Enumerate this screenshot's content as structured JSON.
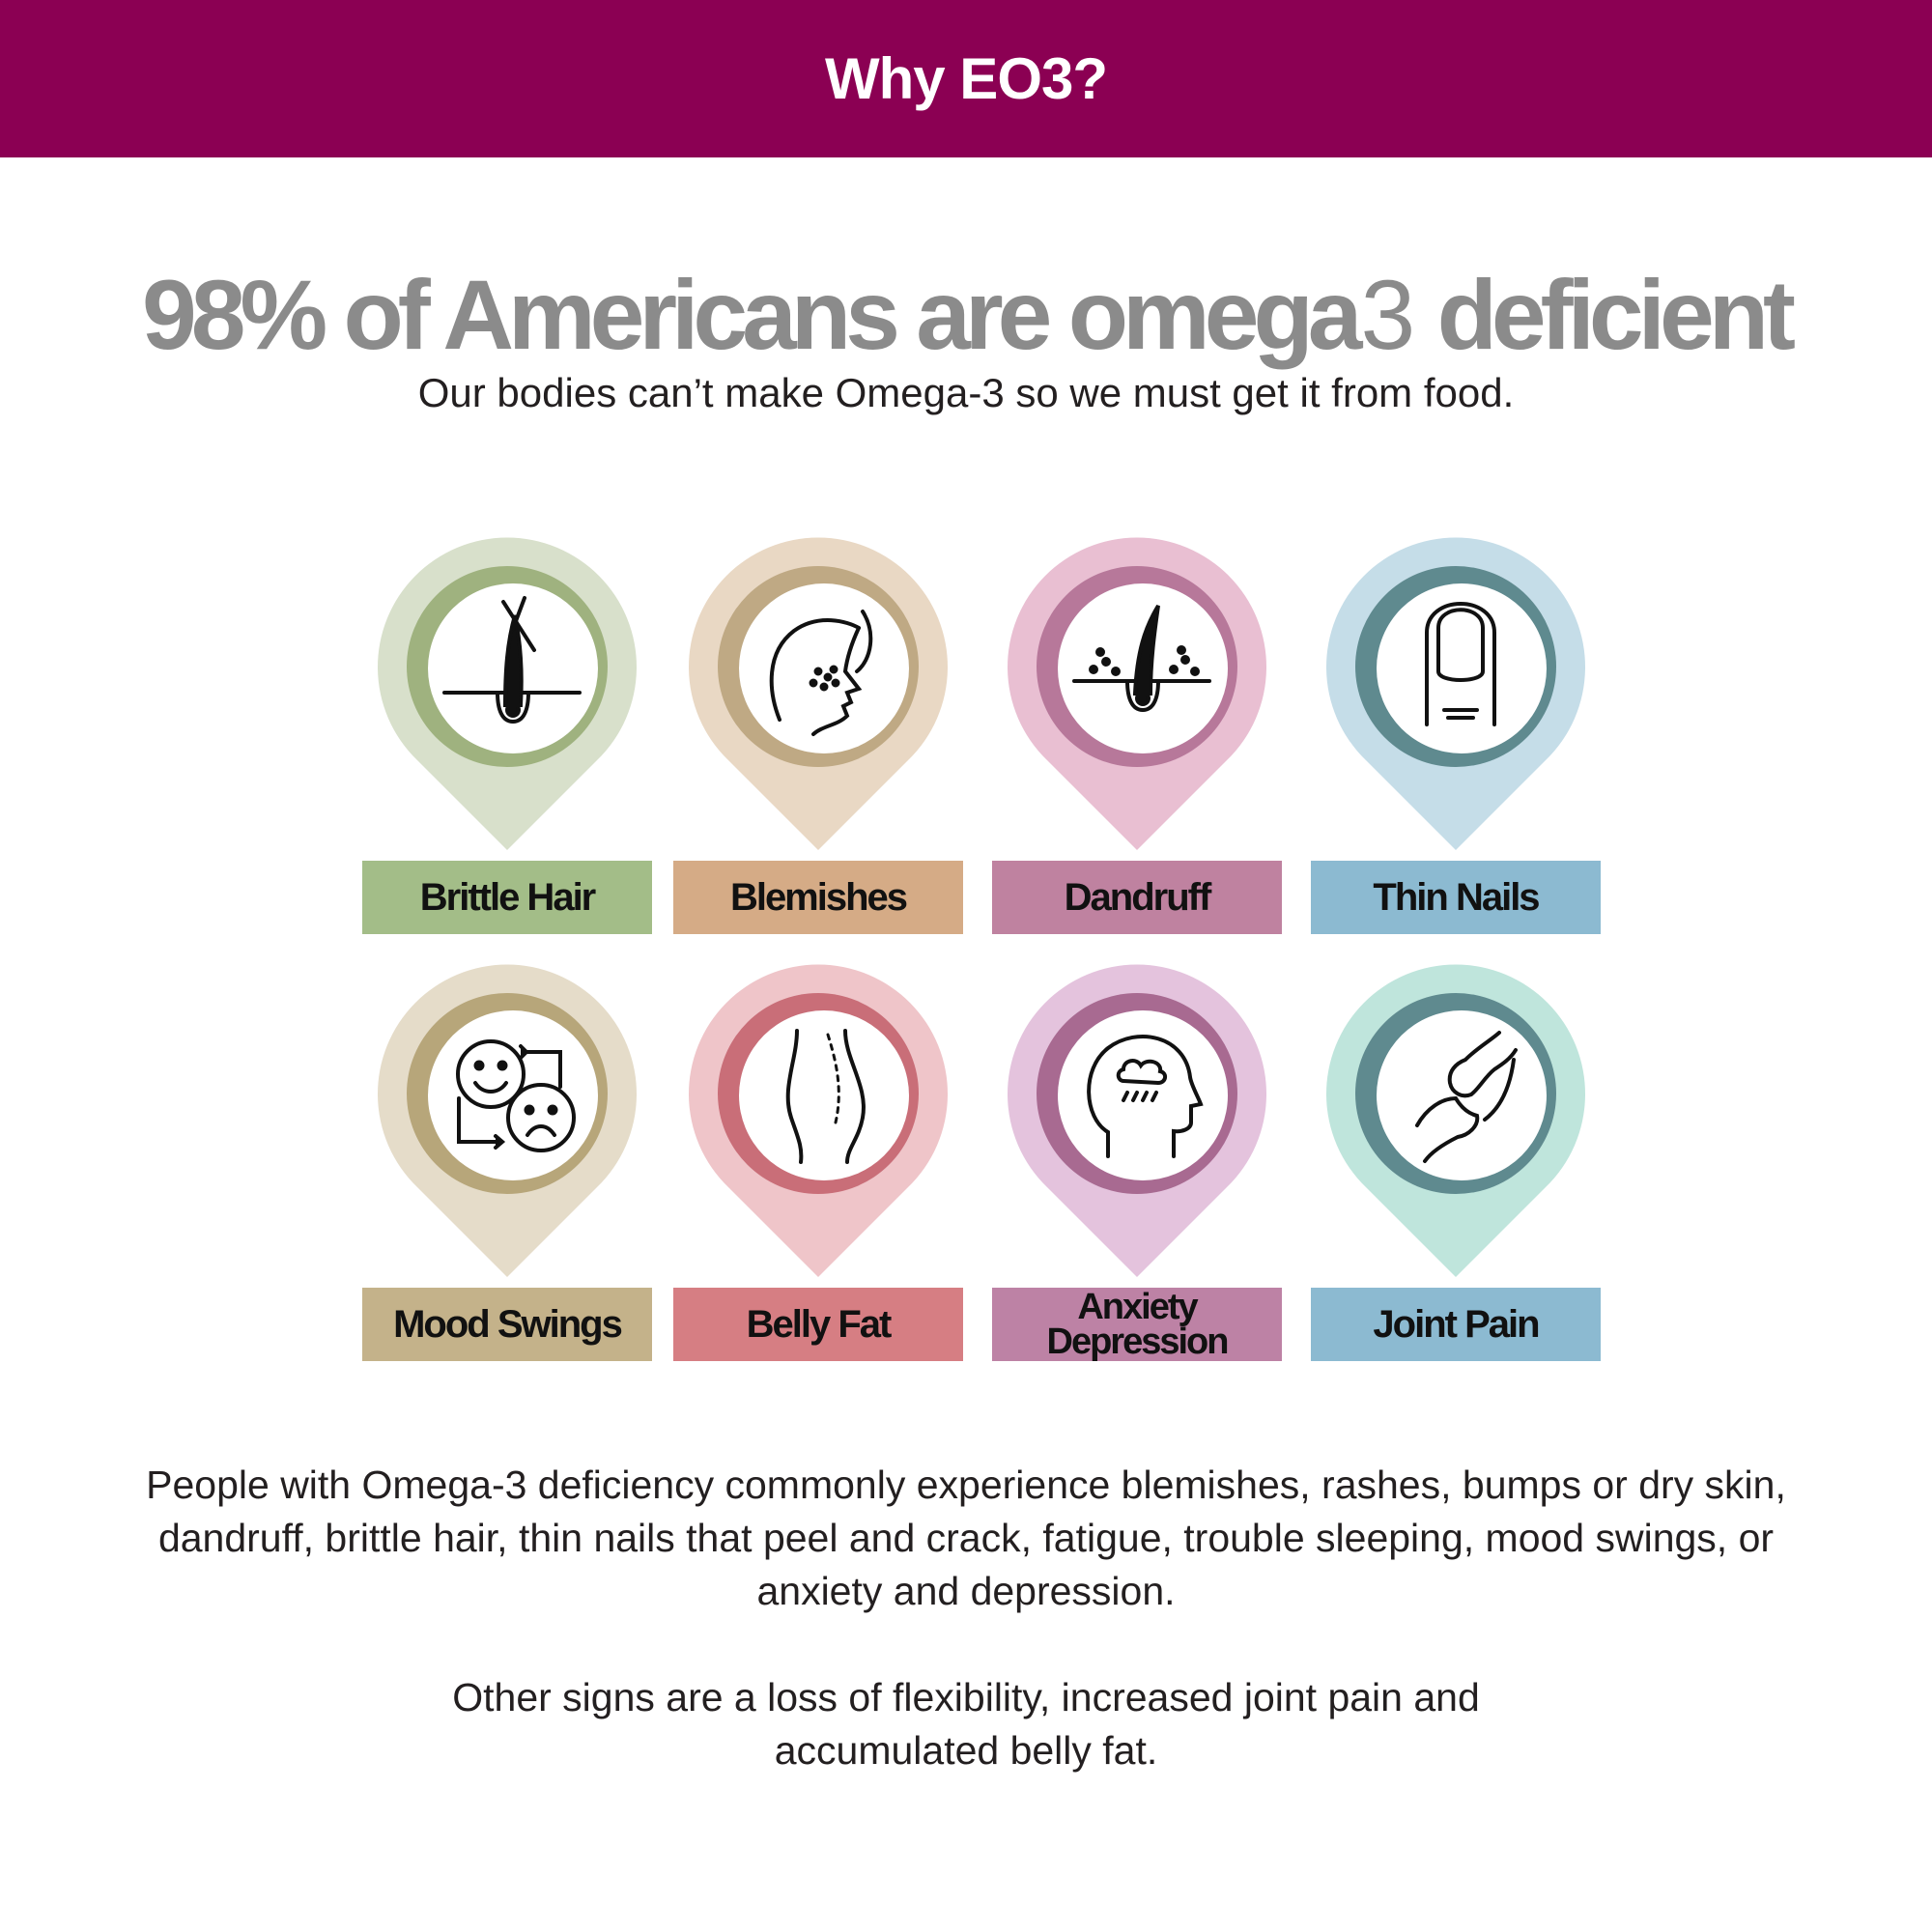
{
  "banner": {
    "title": "Why EO3?"
  },
  "headline": {
    "main": "98% of Americans are omega",
    "three": "3",
    "rest": " deficient"
  },
  "subhead": "Our bodies can’t make Omega-3 so we must get it from food.",
  "symptoms": [
    {
      "label": "Brittle Hair",
      "icon": "brittle-hair-icon",
      "pin_color": "#d8e0cb",
      "ring_color": "#9fb27f",
      "label_color": "#a3bd88"
    },
    {
      "label": "Blemishes",
      "icon": "face-blemish-icon",
      "pin_color": "#e9d8c4",
      "ring_color": "#bfa984",
      "label_color": "#d5ab86"
    },
    {
      "label": "Dandruff",
      "icon": "dandruff-icon",
      "pin_color": "#e9bfd2",
      "ring_color": "#b7789a",
      "label_color": "#bf82a0"
    },
    {
      "label": "Thin Nails",
      "icon": "nail-icon",
      "pin_color": "#c5dde8",
      "ring_color": "#5f8a8f",
      "label_color": "#8cbad1"
    },
    {
      "label": "Mood Swings",
      "icon": "mood-swings-icon",
      "pin_color": "#e5dcc9",
      "ring_color": "#b7a67a",
      "label_color": "#c4b28a"
    },
    {
      "label": "Belly Fat",
      "icon": "belly-fat-icon",
      "pin_color": "#efc5c9",
      "ring_color": "#c96e78",
      "label_color": "#d67e83"
    },
    {
      "label_line1": "Anxiety",
      "label_line2": "Depression",
      "icon": "anxious-head-icon",
      "pin_color": "#e4c3dd",
      "ring_color": "#a86a91",
      "label_color": "#bd82a5"
    },
    {
      "label": "Joint Pain",
      "icon": "joint-icon",
      "pin_color": "#bfe5dc",
      "ring_color": "#5f8a8f",
      "label_color": "#8cbad1"
    }
  ],
  "paragraph1": "People with Omega-3 deficiency commonly experience blemishes, rashes, bumps or dry skin, dandruff, brittle hair, thin nails that peel and crack, fatigue, trouble sleeping, mood swings, or anxiety and depression.",
  "paragraph2": "Other signs are a loss of flexibility, increased joint pain and accumulated belly fat."
}
